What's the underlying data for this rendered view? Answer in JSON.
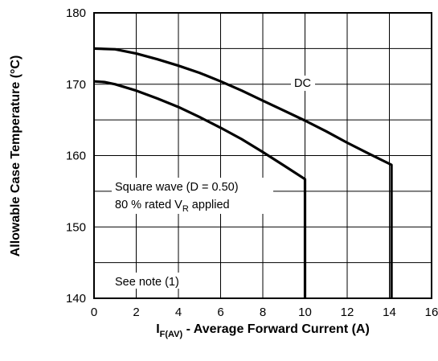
{
  "chart_data": {
    "type": "line",
    "xlabel": {
      "main": "I",
      "sub": "F(AV)",
      "rest": " - Average Forward Current (A)"
    },
    "ylabel": "Allowable Case Temperature (°C)",
    "xlim": [
      0,
      16
    ],
    "ylim": [
      140,
      180
    ],
    "xticks": [
      "0",
      "2",
      "4",
      "6",
      "8",
      "10",
      "12",
      "14",
      "16"
    ],
    "yticks": [
      "140",
      "150",
      "160",
      "170",
      "180"
    ],
    "grid": true,
    "series": [
      {
        "name": "DC",
        "x": [
          0,
          1,
          2,
          3,
          4,
          5,
          6,
          7,
          8,
          9,
          10,
          11,
          12,
          13,
          14.1,
          14.1
        ],
        "y": [
          175.0,
          174.9,
          174.3,
          173.5,
          172.6,
          171.6,
          170.4,
          169.1,
          167.7,
          166.3,
          164.9,
          163.4,
          161.8,
          160.3,
          158.7,
          140
        ]
      },
      {
        "name": "Square wave (D = 0.50)",
        "x": [
          0,
          0.5,
          1,
          2,
          3,
          4,
          5,
          6,
          7,
          8,
          9,
          10,
          10
        ],
        "y": [
          170.4,
          170.3,
          170.0,
          169.1,
          168.0,
          166.8,
          165.4,
          163.9,
          162.3,
          160.5,
          158.6,
          156.7,
          140
        ]
      }
    ],
    "annotations": {
      "dc_label": "DC",
      "square_line1": "Square wave (D = 0.50)",
      "square_line2_pre": "80 % rated V",
      "square_line2_sub": "R",
      "square_line2_post": " applied",
      "note": "See note (1)"
    }
  }
}
